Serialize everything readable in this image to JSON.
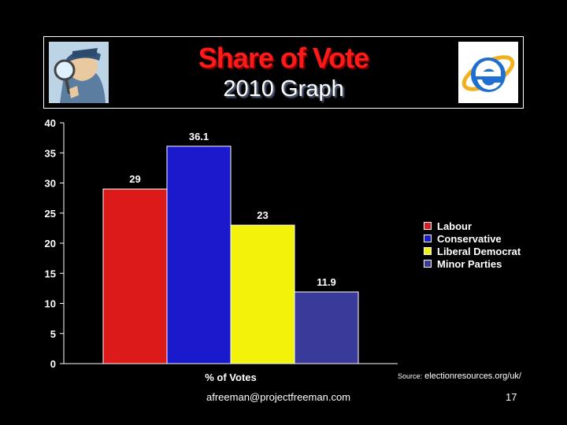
{
  "header": {
    "title": "Share of Vote",
    "subtitle": "2010 Graph"
  },
  "chart_data": {
    "type": "bar",
    "title": "Share of Vote",
    "subtitle": "2010 Graph",
    "categories": [
      "% of Votes"
    ],
    "series": [
      {
        "name": "Labour",
        "values": [
          29
        ],
        "color": "#dd1a1a"
      },
      {
        "name": "Conservative",
        "values": [
          36.1
        ],
        "color": "#1a1acc"
      },
      {
        "name": "Liberal Democrat",
        "values": [
          23
        ],
        "color": "#f2f20a"
      },
      {
        "name": "Minor Parties",
        "values": [
          11.9
        ],
        "color": "#3a3a9a"
      }
    ],
    "ylim": [
      0,
      40
    ],
    "yticks": [
      0,
      5,
      10,
      15,
      20,
      25,
      30,
      35,
      40
    ],
    "xlabel": "",
    "ylabel": "",
    "legend": "right",
    "grid": false
  },
  "source": {
    "label": "Source:",
    "text": "electionresources.org/uk/"
  },
  "footer": {
    "email": "afreeman@projectfreeman.com",
    "page": "17"
  },
  "icons": {
    "left": "detective-magnifier-icon",
    "right": "internet-explorer-icon"
  }
}
